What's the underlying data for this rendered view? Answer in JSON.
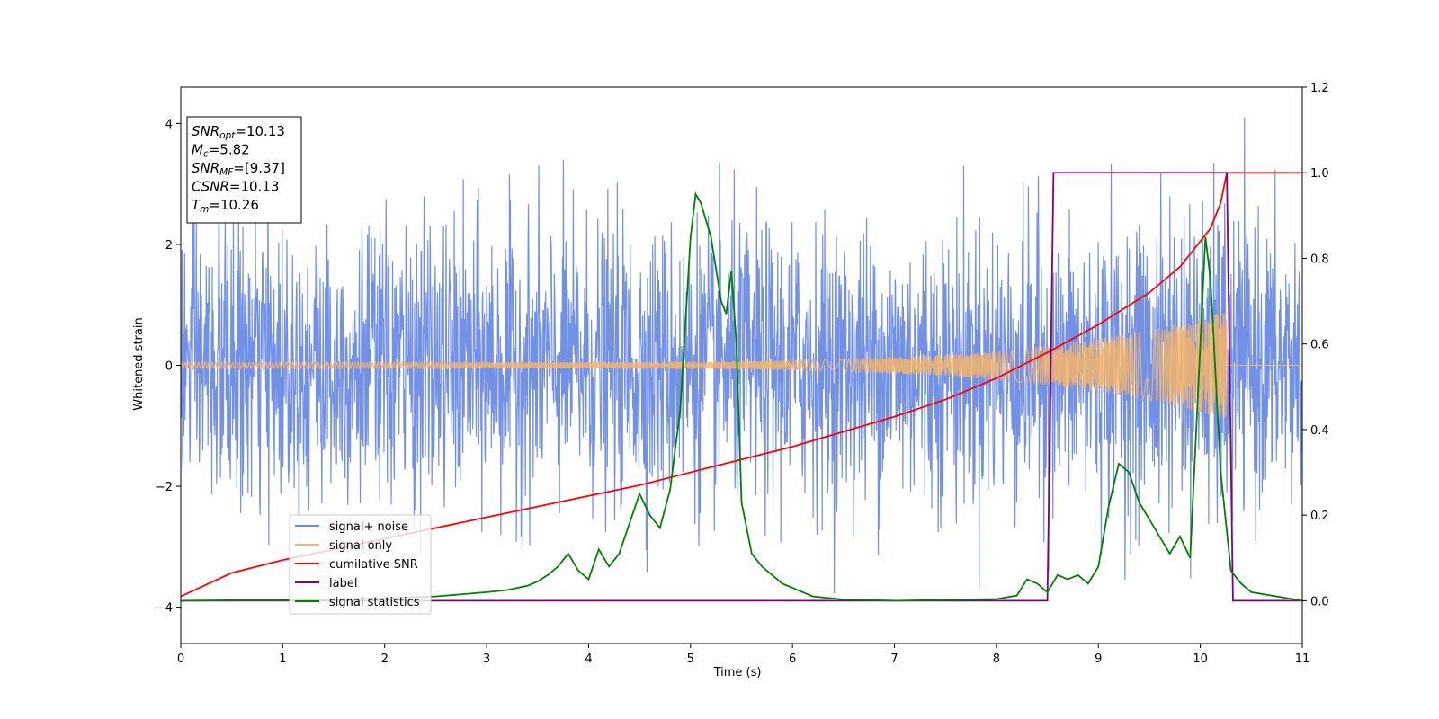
{
  "chart_data": {
    "type": "line",
    "title": "",
    "xlabel": "Time (s)",
    "ylabel": "Whitened strain",
    "xlim": [
      0,
      11
    ],
    "ylim": [
      -4.6,
      4.6
    ],
    "y2lim": [
      -0.1,
      1.2
    ],
    "xticks": [
      "0",
      "1",
      "2",
      "3",
      "4",
      "5",
      "6",
      "7",
      "8",
      "9",
      "10",
      "11"
    ],
    "yticks": [
      "4",
      "2",
      "0",
      "−2",
      "−4"
    ],
    "y2ticks": [
      "1.2",
      "1.0",
      "0.8",
      "0.6",
      "0.4",
      "0.2",
      "0.0"
    ],
    "grid": false,
    "legend_position": "lower-left",
    "annotation": {
      "lines": [
        {
          "sym": "SNR",
          "sub": "opt",
          "val": "=10.13"
        },
        {
          "sym": "M",
          "sub": "c",
          "val": "=5.82"
        },
        {
          "sym": "SNR",
          "sub": "MF",
          "val": "=[9.37]"
        },
        {
          "sym": "CSNR",
          "sub": "",
          "val": "=10.13"
        },
        {
          "sym": "T",
          "sub": "m",
          "val": "=10.26"
        }
      ]
    },
    "series": [
      {
        "name": "signal+ noise",
        "color": "#6b8ae6",
        "axis": "left",
        "kind": "gaussian noise, sigma ~1.2, range approx -4.1 to 4.2"
      },
      {
        "name": "signal only",
        "color": "#f5b56a",
        "axis": "left",
        "kind": "chirp, amplitude growing from ~0.05 at t=0 to ~0.9 at t=10.26, zero after"
      },
      {
        "name": "cumilative SNR",
        "color": "#ff0000",
        "axis": "right",
        "x": [
          0,
          0.5,
          1,
          1.5,
          2,
          2.5,
          3,
          3.5,
          4,
          4.5,
          5,
          5.5,
          6,
          6.5,
          7,
          7.5,
          8,
          8.5,
          9,
          9.5,
          9.8,
          10,
          10.1,
          10.2,
          10.26,
          11
        ],
        "y": [
          0.01,
          0.065,
          0.095,
          0.12,
          0.145,
          0.17,
          0.195,
          0.22,
          0.245,
          0.27,
          0.3,
          0.33,
          0.36,
          0.395,
          0.43,
          0.47,
          0.52,
          0.58,
          0.645,
          0.72,
          0.78,
          0.84,
          0.87,
          0.93,
          1.0,
          1.0
        ]
      },
      {
        "name": "label",
        "color": "#800080",
        "axis": "right",
        "x": [
          0,
          8.5,
          8.56,
          10.26,
          10.32,
          11
        ],
        "y": [
          0,
          0,
          1,
          1,
          0,
          0
        ]
      },
      {
        "name": "signal statistics",
        "color": "#008000",
        "axis": "right",
        "x": [
          0,
          0.5,
          1,
          1.5,
          2,
          2.5,
          3,
          3.2,
          3.4,
          3.5,
          3.6,
          3.7,
          3.8,
          3.9,
          4.0,
          4.1,
          4.2,
          4.3,
          4.4,
          4.5,
          4.6,
          4.7,
          4.8,
          4.9,
          5.0,
          5.05,
          5.1,
          5.2,
          5.3,
          5.35,
          5.4,
          5.45,
          5.5,
          5.6,
          5.7,
          5.8,
          5.9,
          6.0,
          6.2,
          6.5,
          7.0,
          7.5,
          8.0,
          8.2,
          8.3,
          8.4,
          8.5,
          8.6,
          8.7,
          8.8,
          8.9,
          9.0,
          9.1,
          9.2,
          9.3,
          9.4,
          9.5,
          9.6,
          9.7,
          9.8,
          9.9,
          9.95,
          10.0,
          10.05,
          10.1,
          10.2,
          10.3,
          10.4,
          10.5,
          11
        ],
        "y": [
          0.0,
          0.001,
          0.001,
          0.003,
          0.006,
          0.01,
          0.02,
          0.025,
          0.035,
          0.045,
          0.06,
          0.08,
          0.11,
          0.07,
          0.05,
          0.12,
          0.08,
          0.11,
          0.18,
          0.25,
          0.2,
          0.17,
          0.26,
          0.45,
          0.85,
          0.95,
          0.93,
          0.85,
          0.7,
          0.67,
          0.77,
          0.6,
          0.23,
          0.11,
          0.08,
          0.06,
          0.04,
          0.03,
          0.01,
          0.003,
          0.0,
          0.002,
          0.004,
          0.012,
          0.05,
          0.04,
          0.02,
          0.06,
          0.05,
          0.06,
          0.04,
          0.08,
          0.22,
          0.32,
          0.3,
          0.23,
          0.19,
          0.15,
          0.11,
          0.15,
          0.1,
          0.35,
          0.6,
          0.85,
          0.75,
          0.3,
          0.07,
          0.04,
          0.02,
          0.0
        ]
      }
    ]
  }
}
